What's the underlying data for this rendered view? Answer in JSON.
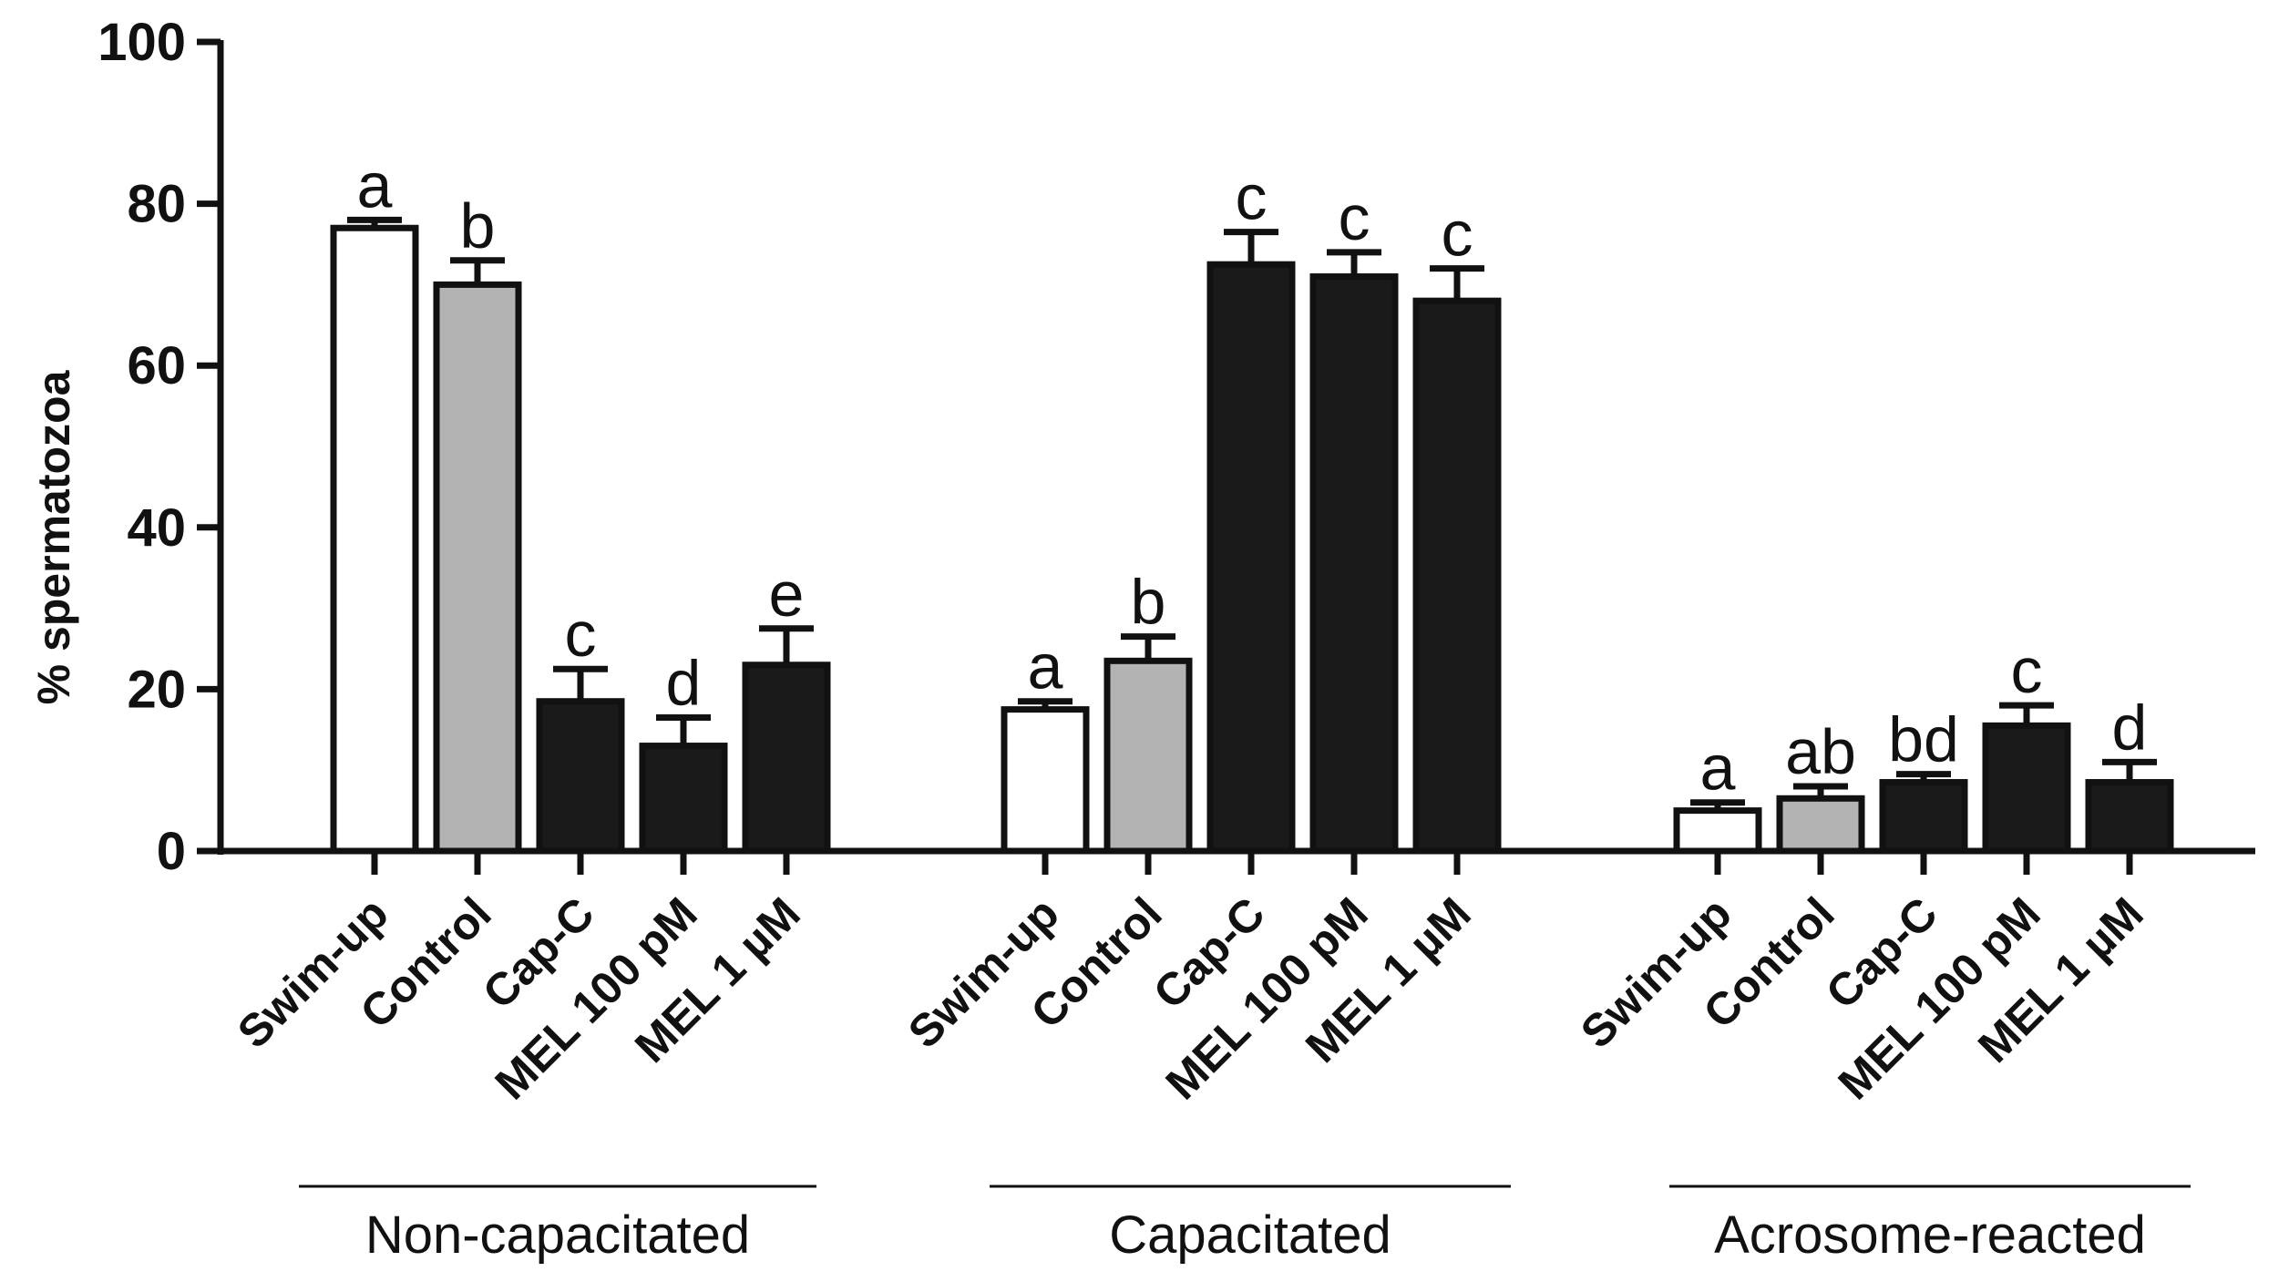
{
  "chart_data": {
    "type": "bar",
    "title": "",
    "xlabel": "",
    "ylabel": "% spermatozoa",
    "ylim": [
      0,
      100
    ],
    "yticks": [
      "0",
      "20",
      "40",
      "60",
      "80",
      "100"
    ],
    "ytick_values": [
      0,
      20,
      40,
      60,
      80,
      100
    ],
    "grid": false,
    "colors": {
      "Swim-up": "#ffffff",
      "Control": "#b3b3b3",
      "Cap-C": "#1a1a1a",
      "MEL 100 pM": "#1a1a1a",
      "MEL 1 µM": "#1a1a1a"
    },
    "groups": [
      {
        "label": "Non-capacitated",
        "categories": [
          "Swim-up",
          "Control",
          "Cap-C",
          "MEL 100 pM",
          "MEL 1 µM"
        ],
        "values": [
          77,
          70,
          18.5,
          13,
          23
        ],
        "errors": [
          1,
          3,
          4,
          3.5,
          4.5
        ],
        "significance": [
          "a",
          "b",
          "c",
          "d",
          "e"
        ]
      },
      {
        "label": "Capacitated",
        "categories": [
          "Swim-up",
          "Control",
          "Cap-C",
          "MEL 100 pM",
          "MEL 1 µM"
        ],
        "values": [
          17.5,
          23.5,
          72.5,
          71,
          68
        ],
        "errors": [
          1,
          3,
          4,
          3,
          4
        ],
        "significance": [
          "a",
          "b",
          "c",
          "c",
          "c"
        ]
      },
      {
        "label": "Acrosome-reacted",
        "categories": [
          "Swim-up",
          "Control",
          "Cap-C",
          "MEL 100 pM",
          "MEL 1 µM"
        ],
        "values": [
          5,
          6.5,
          8.5,
          15.5,
          8.5
        ],
        "errors": [
          1,
          1.5,
          1,
          2.5,
          2.5
        ],
        "significance": [
          "a",
          "ab",
          "bd",
          "c",
          "d"
        ]
      }
    ]
  }
}
